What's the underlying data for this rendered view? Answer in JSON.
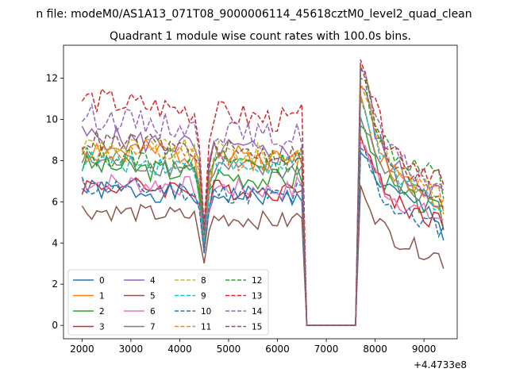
{
  "figure": {
    "suptitle": "n file: modeM0/AS1A13_071T08_9000006114_45618cztM0_level2_quad_clean",
    "offset_label": "+4.4733e8"
  },
  "chart_data": {
    "type": "line",
    "title": "Quadrant 1 module wise count rates with 100.0s bins.",
    "xlabel": "",
    "ylabel": "",
    "xlim": [
      1620,
      9680
    ],
    "ylim": [
      -0.65,
      13.6
    ],
    "x_offset": 447330000,
    "xticks": [
      2000,
      3000,
      4000,
      5000,
      6000,
      7000,
      8000,
      9000
    ],
    "xtick_labels": [
      "2000",
      "3000",
      "4000",
      "5000",
      "6000",
      "7000",
      "8000",
      "9000"
    ],
    "yticks": [
      0,
      2,
      4,
      6,
      8,
      10,
      12
    ],
    "ytick_labels": [
      "0",
      "2",
      "4",
      "6",
      "8",
      "10",
      "12"
    ],
    "grid": false,
    "legend": {
      "position": "lower-left",
      "columns": 4
    },
    "x": {
      "seg1_start": 2000,
      "seg1_end": 6500,
      "gap_start": 6600,
      "gap_end": 7600,
      "seg2_start": 7700,
      "seg2_end": 9400,
      "step": 100
    },
    "series": [
      {
        "name": "0",
        "color": "#1f77b4",
        "dash": "solid",
        "level1": 6.6,
        "level2": 7.0,
        "drift1": -0.4,
        "drift2": -1.8,
        "peak": 8.4,
        "end": 4.1,
        "noise": 0.5,
        "seed": 1
      },
      {
        "name": "1",
        "color": "#ff7f0e",
        "dash": "solid",
        "level1": 8.6,
        "level2": 7.6,
        "drift1": -0.6,
        "drift2": -1.5,
        "peak": 11.2,
        "end": 5.7,
        "noise": 0.6,
        "seed": 2
      },
      {
        "name": "2",
        "color": "#2ca02c",
        "dash": "solid",
        "level1": 7.8,
        "level2": 7.0,
        "drift1": -0.8,
        "drift2": -1.6,
        "peak": 9.7,
        "end": 5.0,
        "noise": 0.55,
        "seed": 3
      },
      {
        "name": "3",
        "color": "#d62728",
        "dash": "solid",
        "level1": 6.8,
        "level2": 6.4,
        "drift1": -0.3,
        "drift2": -1.4,
        "peak": 9.2,
        "end": 4.7,
        "noise": 0.5,
        "seed": 4
      },
      {
        "name": "4",
        "color": "#9467bd",
        "dash": "solid",
        "level1": 9.2,
        "level2": 8.0,
        "drift1": -1.0,
        "drift2": -1.6,
        "peak": 11.6,
        "end": 6.2,
        "noise": 0.6,
        "seed": 5
      },
      {
        "name": "5",
        "color": "#8c564b",
        "dash": "solid",
        "level1": 5.6,
        "level2": 4.6,
        "drift1": -0.6,
        "drift2": -1.3,
        "peak": 6.8,
        "end": 3.1,
        "noise": 0.45,
        "seed": 6
      },
      {
        "name": "6",
        "color": "#e377c2",
        "dash": "solid",
        "level1": 7.0,
        "level2": 6.6,
        "drift1": -0.5,
        "drift2": -1.5,
        "peak": 8.9,
        "end": 5.2,
        "noise": 0.5,
        "seed": 7
      },
      {
        "name": "7",
        "color": "#7f7f7f",
        "dash": "solid",
        "level1": 8.0,
        "level2": 7.4,
        "drift1": -0.6,
        "drift2": -1.6,
        "peak": 10.1,
        "end": 5.5,
        "noise": 0.55,
        "seed": 8
      },
      {
        "name": "8",
        "color": "#bcbd22",
        "dash": "dashed",
        "level1": 8.8,
        "level2": 8.2,
        "drift1": -0.6,
        "drift2": -1.8,
        "peak": 12.4,
        "end": 6.0,
        "noise": 0.55,
        "seed": 9
      },
      {
        "name": "9",
        "color": "#17becf",
        "dash": "dashed",
        "level1": 8.0,
        "level2": 7.6,
        "drift1": -0.4,
        "drift2": -1.7,
        "peak": 11.0,
        "end": 5.6,
        "noise": 0.55,
        "seed": 10
      },
      {
        "name": "10",
        "color": "#1f77b4",
        "dash": "dashed",
        "level1": 6.8,
        "level2": 6.0,
        "drift1": -0.6,
        "drift2": -1.3,
        "peak": 8.6,
        "end": 4.6,
        "noise": 0.5,
        "seed": 11
      },
      {
        "name": "11",
        "color": "#ff7f0e",
        "dash": "dashed",
        "level1": 8.4,
        "level2": 8.0,
        "drift1": -0.5,
        "drift2": -1.8,
        "peak": 11.8,
        "end": 5.9,
        "noise": 0.55,
        "seed": 12
      },
      {
        "name": "12",
        "color": "#2ca02c",
        "dash": "dashed",
        "level1": 8.2,
        "level2": 8.8,
        "drift1": -0.3,
        "drift2": -1.7,
        "peak": 12.0,
        "end": 6.3,
        "noise": 0.55,
        "seed": 13
      },
      {
        "name": "13",
        "color": "#d62728",
        "dash": "dashed",
        "level1": 11.0,
        "level2": 9.0,
        "drift1": -1.2,
        "drift2": -1.8,
        "peak": 12.9,
        "end": 6.6,
        "noise": 0.65,
        "seed": 14
      },
      {
        "name": "14",
        "color": "#9467bd",
        "dash": "dashed",
        "level1": 10.2,
        "level2": 8.6,
        "drift1": -1.2,
        "drift2": -1.9,
        "peak": 12.4,
        "end": 6.1,
        "noise": 0.6,
        "seed": 15
      },
      {
        "name": "15",
        "color": "#8c564b",
        "dash": "dashed",
        "level1": 9.0,
        "level2": 8.0,
        "drift1": -0.8,
        "drift2": -1.8,
        "peak": 12.6,
        "end": 5.8,
        "noise": 0.55,
        "seed": 16
      }
    ]
  }
}
